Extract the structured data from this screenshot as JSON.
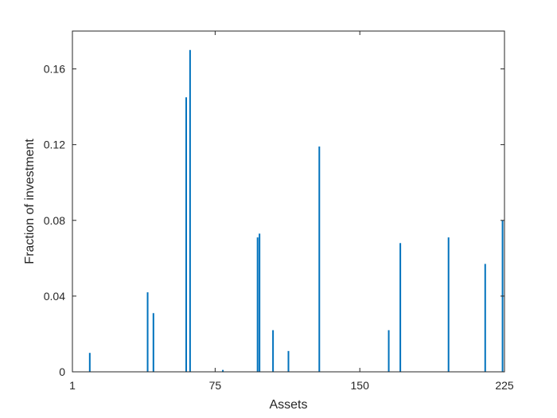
{
  "chart_data": {
    "type": "bar",
    "title": "",
    "xlabel": "Assets",
    "ylabel": "Fraction of investment",
    "xlim": [
      1,
      225
    ],
    "ylim": [
      0,
      0.18
    ],
    "xticks": [
      1,
      75,
      150,
      225
    ],
    "xtick_labels": [
      "1",
      "75",
      "150",
      "225"
    ],
    "yticks": [
      0,
      0.04,
      0.08,
      0.12,
      0.16
    ],
    "ytick_labels": [
      "0",
      "0.04",
      "0.08",
      "0.12",
      "0.16"
    ],
    "grid": false,
    "bar_color": "#0072BD",
    "axis_color": "#262626",
    "points": [
      {
        "x": 10,
        "y": 0.01
      },
      {
        "x": 40,
        "y": 0.042
      },
      {
        "x": 43,
        "y": 0.031
      },
      {
        "x": 60,
        "y": 0.145
      },
      {
        "x": 62,
        "y": 0.17
      },
      {
        "x": 79,
        "y": 0.001
      },
      {
        "x": 97,
        "y": 0.071
      },
      {
        "x": 98,
        "y": 0.073
      },
      {
        "x": 105,
        "y": 0.022
      },
      {
        "x": 113,
        "y": 0.011
      },
      {
        "x": 129,
        "y": 0.119
      },
      {
        "x": 165,
        "y": 0.022
      },
      {
        "x": 171,
        "y": 0.068
      },
      {
        "x": 196,
        "y": 0.071
      },
      {
        "x": 215,
        "y": 0.057
      },
      {
        "x": 224,
        "y": 0.08
      }
    ]
  }
}
